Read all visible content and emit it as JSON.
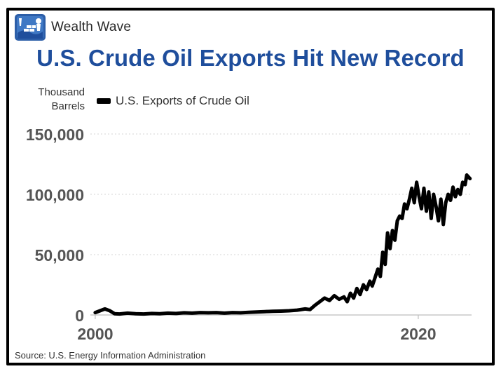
{
  "brand": {
    "name": "Wealth Wave",
    "logo_icon": "wealth-wave-logo-icon"
  },
  "title": "U.S. Crude Oil Exports Hit New Record",
  "source": "Source: U.S. Energy Information Administration",
  "colors": {
    "title": "#1f4e9c",
    "line": "#000000",
    "grid": "#d4d4d4",
    "tick_text": "#555555",
    "frame": "#000000"
  },
  "chart_data": {
    "type": "line",
    "title": "U.S. Crude Oil Exports Hit New Record",
    "ylabel": "Thousand Barrels",
    "xlabel": "",
    "ylim": [
      0,
      150000
    ],
    "xlim": [
      1999.7,
      2023.3
    ],
    "yticks": [
      {
        "value": 0,
        "label": "0"
      },
      {
        "value": 50000,
        "label": "50,000"
      },
      {
        "value": 100000,
        "label": "100,000"
      },
      {
        "value": 150000,
        "label": "150,000"
      }
    ],
    "xticks": [
      {
        "value": 2000,
        "label": "2000"
      },
      {
        "value": 2020,
        "label": "2020"
      }
    ],
    "grid": "horizontal-dotted",
    "legend_position": "top-left",
    "series": [
      {
        "name": "U.S. Exports of Crude Oil",
        "x": [
          2000.0,
          2000.3,
          2000.6,
          2000.9,
          2001.2,
          2001.5,
          2002.0,
          2002.5,
          2003.0,
          2003.5,
          2004.0,
          2004.5,
          2005.0,
          2005.5,
          2006.0,
          2006.5,
          2007.0,
          2007.5,
          2008.0,
          2008.5,
          2009.0,
          2009.5,
          2010.0,
          2010.5,
          2011.0,
          2011.5,
          2012.0,
          2012.5,
          2013.0,
          2013.3,
          2013.6,
          2013.9,
          2014.2,
          2014.5,
          2014.8,
          2015.1,
          2015.4,
          2015.6,
          2015.8,
          2016.0,
          2016.2,
          2016.4,
          2016.6,
          2016.8,
          2017.0,
          2017.15,
          2017.3,
          2017.5,
          2017.65,
          2017.8,
          2017.95,
          2018.1,
          2018.25,
          2018.4,
          2018.55,
          2018.7,
          2018.85,
          2019.0,
          2019.15,
          2019.3,
          2019.45,
          2019.6,
          2019.75,
          2019.9,
          2020.05,
          2020.2,
          2020.35,
          2020.5,
          2020.65,
          2020.8,
          2020.95,
          2021.1,
          2021.25,
          2021.4,
          2021.55,
          2021.7,
          2021.85,
          2022.0,
          2022.15,
          2022.3,
          2022.45,
          2022.6,
          2022.75,
          2022.9,
          2023.0,
          2023.2
        ],
        "y": [
          2000,
          3500,
          5000,
          3500,
          1000,
          800,
          1500,
          1000,
          800,
          1200,
          1000,
          1500,
          1200,
          1800,
          1500,
          2000,
          1800,
          2000,
          1500,
          2000,
          1800,
          2200,
          2500,
          2800,
          3000,
          3200,
          3500,
          4000,
          5000,
          4500,
          8000,
          11000,
          14000,
          12000,
          16000,
          13000,
          15000,
          11000,
          18000,
          14000,
          22000,
          17000,
          25000,
          21000,
          28000,
          24000,
          30000,
          38000,
          32000,
          52000,
          42000,
          68000,
          55000,
          70000,
          62000,
          78000,
          82000,
          80000,
          92000,
          88000,
          96000,
          105000,
          93000,
          110000,
          98000,
          88000,
          105000,
          86000,
          102000,
          80000,
          100000,
          90000,
          78000,
          96000,
          75000,
          93000,
          100000,
          95000,
          106000,
          98000,
          104000,
          100000,
          110000,
          108000,
          116000,
          113000
        ]
      }
    ]
  }
}
